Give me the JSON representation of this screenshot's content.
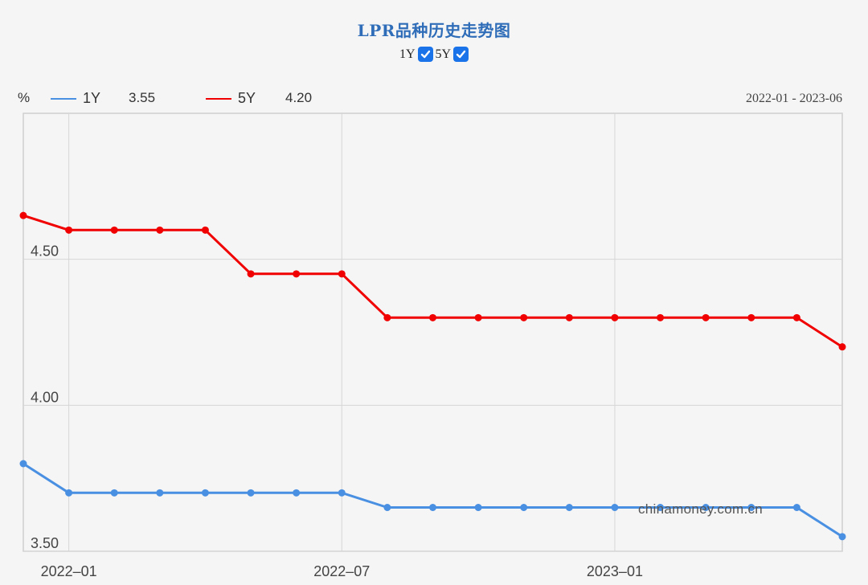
{
  "header": {
    "title": "LPR品种历史走势图",
    "toggles": [
      {
        "label": "1Y",
        "checked": true
      },
      {
        "label": "5Y",
        "checked": true
      }
    ]
  },
  "legend": {
    "unit": "%",
    "items": [
      {
        "name": "1Y",
        "latest": "3.55",
        "color": "#4a90e2"
      },
      {
        "name": "5Y",
        "latest": "4.20",
        "color": "#f00000"
      }
    ],
    "date_range": "2022-01 - 2023-06"
  },
  "watermark": "chinamoney.com.cn",
  "chart_data": {
    "type": "line",
    "title": "LPR品种历史走势图",
    "xlabel": "",
    "ylabel": "%",
    "x": [
      "2021-12",
      "2022-01",
      "2022-02",
      "2022-03",
      "2022-04",
      "2022-05",
      "2022-06",
      "2022-07",
      "2022-08",
      "2022-09",
      "2022-10",
      "2022-11",
      "2022-12",
      "2023-01",
      "2023-02",
      "2023-03",
      "2023-04",
      "2023-05",
      "2023-06"
    ],
    "x_tick_labels": [
      "2022-01",
      "2022-07",
      "2023-01"
    ],
    "y_tick_labels": [
      "3.50",
      "4.00",
      "4.50"
    ],
    "ylim": [
      3.5,
      5.0
    ],
    "grid": true,
    "legend_position": "top-left",
    "series": [
      {
        "name": "1Y",
        "color": "#4a90e2",
        "values": [
          3.8,
          3.7,
          3.7,
          3.7,
          3.7,
          3.7,
          3.7,
          3.7,
          3.65,
          3.65,
          3.65,
          3.65,
          3.65,
          3.65,
          3.65,
          3.65,
          3.65,
          3.65,
          3.55
        ]
      },
      {
        "name": "5Y",
        "color": "#f00000",
        "values": [
          4.65,
          4.6,
          4.6,
          4.6,
          4.6,
          4.45,
          4.45,
          4.45,
          4.3,
          4.3,
          4.3,
          4.3,
          4.3,
          4.3,
          4.3,
          4.3,
          4.3,
          4.3,
          4.2
        ]
      }
    ]
  }
}
